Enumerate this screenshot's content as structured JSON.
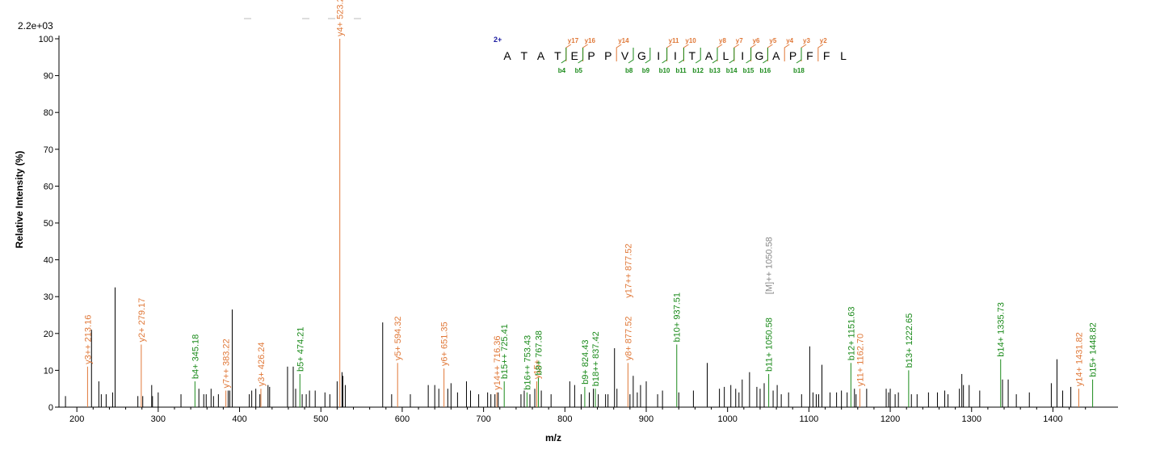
{
  "colors": {
    "b_ion": "#1a8a1a",
    "y_ion": "#e07838",
    "precursor": "#888888",
    "unmatched": "#000000"
  },
  "chart_data": {
    "type": "bar",
    "subtype": "mass-spectrum",
    "xlabel": "m/z",
    "ylabel": "Relative  Intensity (%)",
    "scale_label": "2.2e+03",
    "xlim": [
      178,
      1480
    ],
    "ylim": [
      0,
      100
    ],
    "xticks": [
      200,
      300,
      400,
      500,
      600,
      700,
      800,
      900,
      1000,
      1100,
      1200,
      1300,
      1400
    ],
    "yticks": [
      0,
      10,
      20,
      30,
      40,
      50,
      60,
      70,
      80,
      90,
      100
    ],
    "sequence": {
      "charge": "2+",
      "residues": [
        "A",
        "T",
        "A",
        "T",
        "E",
        "P",
        "P",
        "V",
        "G",
        "I",
        "I",
        "T",
        "A",
        "L",
        "I",
        "G",
        "A",
        "P",
        "F",
        "F",
        "L"
      ],
      "y_labels": [
        {
          "label": "y17",
          "after": 4
        },
        {
          "label": "y16",
          "after": 5
        },
        {
          "label": "y14",
          "after": 7
        },
        {
          "label": "y11",
          "after": 10
        },
        {
          "label": "y10",
          "after": 11
        },
        {
          "label": "y8",
          "after": 13
        },
        {
          "label": "y7",
          "after": 14
        },
        {
          "label": "y6",
          "after": 15
        },
        {
          "label": "y5",
          "after": 16
        },
        {
          "label": "y4",
          "after": 17
        },
        {
          "label": "y3",
          "after": 18
        },
        {
          "label": "y2",
          "after": 19
        }
      ],
      "b_labels": [
        {
          "label": "b4",
          "after": 4
        },
        {
          "label": "b5",
          "after": 5
        },
        {
          "label": "b8",
          "after": 8
        },
        {
          "label": "b9",
          "after": 9
        },
        {
          "label": "b10",
          "after": 10
        },
        {
          "label": "b11",
          "after": 11
        },
        {
          "label": "b12",
          "after": 12
        },
        {
          "label": "b13",
          "after": 13
        },
        {
          "label": "b14",
          "after": 14
        },
        {
          "label": "b15",
          "after": 15
        },
        {
          "label": "b16",
          "after": 16
        },
        {
          "label": "b18",
          "after": 18
        }
      ]
    },
    "labeled_peaks": [
      {
        "mz": 213.16,
        "intensity": 11,
        "ion": "y",
        "label": "y3++ 213.16"
      },
      {
        "mz": 279.17,
        "intensity": 17,
        "ion": "y",
        "label": "y2+ 279.17"
      },
      {
        "mz": 345.18,
        "intensity": 7,
        "ion": "b",
        "label": "b4+ 345.18"
      },
      {
        "mz": 383.22,
        "intensity": 4.5,
        "ion": "y",
        "label": "y7++ 383.22"
      },
      {
        "mz": 426.24,
        "intensity": 5,
        "ion": "y",
        "label": "y3+ 426.24"
      },
      {
        "mz": 474.21,
        "intensity": 9,
        "ion": "b",
        "label": "b5+ 474.21"
      },
      {
        "mz": 523.29,
        "intensity": 100,
        "ion": "y",
        "label": "y4+ 523.29"
      },
      {
        "mz": 594.32,
        "intensity": 12,
        "ion": "y",
        "label": "y5+ 594.32"
      },
      {
        "mz": 651.35,
        "intensity": 10.5,
        "ion": "y",
        "label": "y6+ 651.35"
      },
      {
        "mz": 716.36,
        "intensity": 4,
        "ion": "y",
        "label": "y14++ 716.36"
      },
      {
        "mz": 725.41,
        "intensity": 7,
        "ion": "b",
        "label": "b15++ 725.41"
      },
      {
        "mz": 753.43,
        "intensity": 4,
        "ion": "b",
        "label": "b16++ 753.43"
      },
      {
        "mz": 765.4,
        "intensity": 7,
        "ion": "y",
        "label": "y15+"
      },
      {
        "mz": 767.38,
        "intensity": 8,
        "ion": "b",
        "label": "b8+ 767.38"
      },
      {
        "mz": 824.43,
        "intensity": 5.5,
        "ion": "b",
        "label": "b9+ 824.43"
      },
      {
        "mz": 837.42,
        "intensity": 5,
        "ion": "b",
        "label": "b18++ 837.42"
      },
      {
        "mz": 877.52,
        "intensity": 12,
        "ion": "y",
        "label": "y8+ 877.52"
      },
      {
        "mz": 877.52,
        "intensity": 29,
        "ion": "y",
        "label": "y17++ 877.52",
        "no_line": true
      },
      {
        "mz": 937.51,
        "intensity": 17,
        "ion": "b",
        "label": "b10+ 937.51"
      },
      {
        "mz": 1050.58,
        "intensity": 9,
        "ion": "b",
        "label": "b11+ 1050.58"
      },
      {
        "mz": 1050.58,
        "intensity": 30,
        "ion": "p",
        "label": "[M]++ 1050.58",
        "no_line": true
      },
      {
        "mz": 1151.63,
        "intensity": 12,
        "ion": "b",
        "label": "b12+ 1151.63"
      },
      {
        "mz": 1162.7,
        "intensity": 5,
        "ion": "y",
        "label": "y11+ 1162.70"
      },
      {
        "mz": 1222.65,
        "intensity": 10,
        "ion": "b",
        "label": "b13+ 1222.65"
      },
      {
        "mz": 1335.73,
        "intensity": 13,
        "ion": "b",
        "label": "b14+ 1335.73"
      },
      {
        "mz": 1431.82,
        "intensity": 5,
        "ion": "y",
        "label": "y14+ 1431.82"
      },
      {
        "mz": 1448.82,
        "intensity": 7.5,
        "ion": "b",
        "label": "b15+ 1448.82"
      }
    ],
    "unlabeled_peaks": [
      [
        186,
        3
      ],
      [
        218,
        21
      ],
      [
        227,
        7
      ],
      [
        230,
        3.5
      ],
      [
        236,
        3.5
      ],
      [
        244,
        4
      ],
      [
        247,
        32.5
      ],
      [
        275,
        3
      ],
      [
        281,
        3
      ],
      [
        292,
        6
      ],
      [
        293,
        3
      ],
      [
        300,
        4
      ],
      [
        328,
        3.5
      ],
      [
        350,
        5
      ],
      [
        356,
        3.5
      ],
      [
        359,
        3.5
      ],
      [
        365,
        5
      ],
      [
        368,
        3
      ],
      [
        374,
        3.5
      ],
      [
        386,
        4.5
      ],
      [
        388,
        4.5
      ],
      [
        391,
        26.5
      ],
      [
        412,
        3.5
      ],
      [
        415,
        4.5
      ],
      [
        420,
        5
      ],
      [
        425,
        3.5
      ],
      [
        435,
        6
      ],
      [
        437,
        5.5
      ],
      [
        459,
        11
      ],
      [
        466,
        11
      ],
      [
        469,
        5
      ],
      [
        477,
        3.5
      ],
      [
        482,
        3.5
      ],
      [
        486,
        4.5
      ],
      [
        493,
        4.5
      ],
      [
        505,
        4
      ],
      [
        511,
        3.5
      ],
      [
        520,
        7
      ],
      [
        526,
        9.5
      ],
      [
        527,
        8.5
      ],
      [
        530,
        6
      ],
      [
        576,
        23
      ],
      [
        587,
        3.5
      ],
      [
        610,
        3.5
      ],
      [
        632,
        6
      ],
      [
        640,
        6
      ],
      [
        645,
        5
      ],
      [
        656,
        5
      ],
      [
        660,
        6.5
      ],
      [
        668,
        4
      ],
      [
        679,
        7
      ],
      [
        684,
        4.5
      ],
      [
        694,
        3.5
      ],
      [
        705,
        4
      ],
      [
        709,
        3.5
      ],
      [
        714,
        3.5
      ],
      [
        718,
        4
      ],
      [
        746,
        3.5
      ],
      [
        750,
        4.5
      ],
      [
        757,
        3.5
      ],
      [
        763,
        5
      ],
      [
        771,
        4.5
      ],
      [
        783,
        3.5
      ],
      [
        806,
        7
      ],
      [
        812,
        6
      ],
      [
        820,
        3.5
      ],
      [
        830,
        4
      ],
      [
        835,
        5
      ],
      [
        841,
        3.5
      ],
      [
        850,
        3.5
      ],
      [
        853,
        3.5
      ],
      [
        861,
        16
      ],
      [
        864,
        5
      ],
      [
        880,
        3.5
      ],
      [
        884,
        8.5
      ],
      [
        889,
        4
      ],
      [
        893,
        6
      ],
      [
        900,
        7
      ],
      [
        914,
        3.5
      ],
      [
        920,
        4.5
      ],
      [
        940,
        4
      ],
      [
        958,
        4.5
      ],
      [
        975,
        12
      ],
      [
        990,
        5
      ],
      [
        996,
        5.5
      ],
      [
        1004,
        6
      ],
      [
        1010,
        5
      ],
      [
        1014,
        4
      ],
      [
        1018,
        7.5
      ],
      [
        1027,
        9.5
      ],
      [
        1036,
        5.5
      ],
      [
        1040,
        5
      ],
      [
        1045,
        6.5
      ],
      [
        1056,
        4.5
      ],
      [
        1061,
        6
      ],
      [
        1066,
        3.5
      ],
      [
        1075,
        4
      ],
      [
        1091,
        3.5
      ],
      [
        1101,
        16.5
      ],
      [
        1105,
        4
      ],
      [
        1109,
        3.5
      ],
      [
        1112,
        3.5
      ],
      [
        1116,
        11.5
      ],
      [
        1126,
        4
      ],
      [
        1134,
        4
      ],
      [
        1140,
        4.5
      ],
      [
        1147,
        4
      ],
      [
        1156,
        5
      ],
      [
        1158,
        3.5
      ],
      [
        1171,
        5
      ],
      [
        1195,
        5
      ],
      [
        1198,
        4
      ],
      [
        1200,
        5
      ],
      [
        1206,
        3.5
      ],
      [
        1210,
        4
      ],
      [
        1226,
        3.5
      ],
      [
        1233,
        3.5
      ],
      [
        1247,
        4
      ],
      [
        1258,
        4
      ],
      [
        1267,
        4.5
      ],
      [
        1271,
        3.5
      ],
      [
        1285,
        5
      ],
      [
        1288,
        9
      ],
      [
        1290,
        6
      ],
      [
        1297,
        6
      ],
      [
        1310,
        4.5
      ],
      [
        1338,
        7.5
      ],
      [
        1345,
        7.5
      ],
      [
        1355,
        3.5
      ],
      [
        1371,
        4
      ],
      [
        1398,
        6.5
      ],
      [
        1405,
        13
      ],
      [
        1412,
        4.5
      ],
      [
        1422,
        5.5
      ]
    ]
  }
}
